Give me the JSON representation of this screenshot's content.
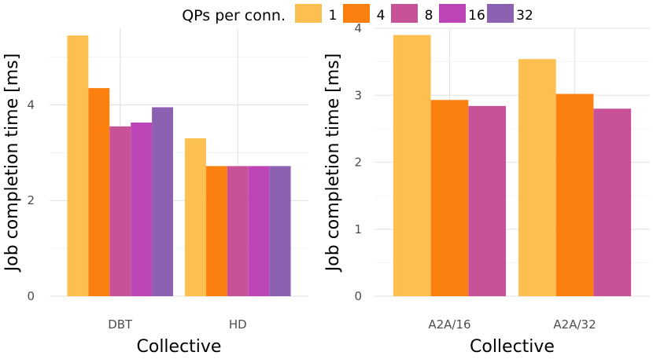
{
  "legend": {
    "title": "QPs per conn.",
    "position": "top",
    "items": [
      {
        "label": "1",
        "color": "#FDBF4F"
      },
      {
        "label": "4",
        "color": "#FC8010"
      },
      {
        "label": "8",
        "color": "#C85298"
      },
      {
        "label": "16",
        "color": "#BC45B7"
      },
      {
        "label": "32",
        "color": "#8D61B2"
      }
    ]
  },
  "chart_data": [
    {
      "type": "bar",
      "xlabel": "Collective",
      "ylabel": "Job completion time [ms]",
      "categories": [
        "DBT",
        "HD"
      ],
      "ylim": [
        0,
        5.6
      ],
      "yticks": [
        0,
        2,
        4
      ],
      "grid": true,
      "series": [
        {
          "name": "1",
          "values": [
            5.45,
            3.3
          ]
        },
        {
          "name": "4",
          "values": [
            4.35,
            2.72
          ]
        },
        {
          "name": "8",
          "values": [
            3.55,
            2.72
          ]
        },
        {
          "name": "16",
          "values": [
            3.63,
            2.72
          ]
        },
        {
          "name": "32",
          "values": [
            3.95,
            2.72
          ]
        }
      ]
    },
    {
      "type": "bar",
      "xlabel": "Collective",
      "ylabel": "Job completion time [ms]",
      "categories": [
        "A2A/16",
        "A2A/32"
      ],
      "ylim": [
        0,
        4.0
      ],
      "yticks": [
        0,
        1,
        2,
        3,
        4
      ],
      "grid": true,
      "series": [
        {
          "name": "1",
          "values": [
            3.9,
            3.54
          ]
        },
        {
          "name": "4",
          "values": [
            2.93,
            3.02
          ]
        },
        {
          "name": "8",
          "values": [
            2.84,
            2.8
          ]
        }
      ]
    }
  ]
}
